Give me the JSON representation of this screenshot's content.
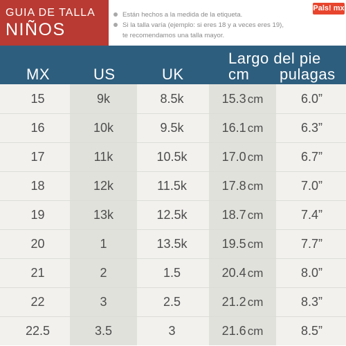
{
  "header": {
    "title_line1": "GUIA DE TALLA",
    "title_line2": "NIÑOS",
    "note1": "Están hechos a la medida de la etiqueta.",
    "note2_line1": "Si la talla varía (ejemplo: si eres 18 y a veces eres 19),",
    "note2_line2": "te recomendamos una talla mayor.",
    "logo": "Pals! mx"
  },
  "columns": {
    "mx": "MX",
    "us": "US",
    "uk": "UK",
    "foot": "Largo del pie",
    "cm": "cm",
    "inches": "pulagas"
  },
  "unit_cm": "cm",
  "rows": [
    {
      "mx": "15",
      "us": "9k",
      "uk": "8.5k",
      "cm": "15.3",
      "in": "6.0”"
    },
    {
      "mx": "16",
      "us": "10k",
      "uk": "9.5k",
      "cm": "16.1",
      "in": "6.3”"
    },
    {
      "mx": "17",
      "us": "11k",
      "uk": "10.5k",
      "cm": "17.0",
      "in": "6.7”"
    },
    {
      "mx": "18",
      "us": "12k",
      "uk": "11.5k",
      "cm": "17.8",
      "in": "7.0”"
    },
    {
      "mx": "19",
      "us": "13k",
      "uk": "12.5k",
      "cm": "18.7",
      "in": "7.4”"
    },
    {
      "mx": "20",
      "us": "1",
      "uk": "13.5k",
      "cm": "19.5",
      "in": "7.7”"
    },
    {
      "mx": "21",
      "us": "2",
      "uk": "1.5",
      "cm": "20.4",
      "in": "8.0”"
    },
    {
      "mx": "22",
      "us": "3",
      "uk": "2.5",
      "cm": "21.2",
      "in": "8.3”"
    },
    {
      "mx": "22.5",
      "us": "3.5",
      "uk": "3",
      "cm": "21.6",
      "in": "8.5”"
    }
  ],
  "colors": {
    "title_bg": "#b83a32",
    "header_bg": "#2e5e7e",
    "row_bg": "#f2f1ee",
    "shaded_col": "#e1e1dc",
    "logo_bg": "#e8452e"
  }
}
